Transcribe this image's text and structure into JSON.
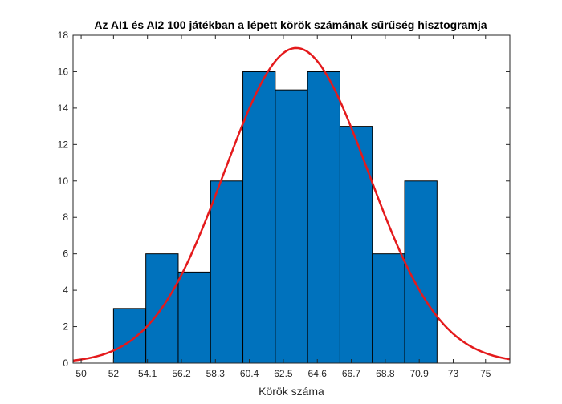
{
  "chart_data": {
    "type": "bar",
    "title": "Az AI1 és AI2 100 játékban a lépett körök számának sűrűség hisztogramja",
    "xlabel": "Körök száma",
    "ylabel": "",
    "xlim": [
      49.5,
      76.5
    ],
    "ylim": [
      0,
      18
    ],
    "yticks": [
      0,
      2,
      4,
      6,
      8,
      10,
      12,
      14,
      16,
      18
    ],
    "xticks": [
      {
        "value": 50,
        "label": "50"
      },
      {
        "value": 52,
        "label": "52"
      },
      {
        "value": 54.1,
        "label": "54.1"
      },
      {
        "value": 56.2,
        "label": "56.2"
      },
      {
        "value": 58.3,
        "label": "58.3"
      },
      {
        "value": 60.4,
        "label": "60.4"
      },
      {
        "value": 62.5,
        "label": "62.5"
      },
      {
        "value": 64.6,
        "label": "64.6"
      },
      {
        "value": 66.7,
        "label": "66.7"
      },
      {
        "value": 68.8,
        "label": "68.8"
      },
      {
        "value": 70.9,
        "label": "70.9"
      },
      {
        "value": 73,
        "label": "73"
      },
      {
        "value": 75,
        "label": "75"
      }
    ],
    "bins": [
      {
        "from": 52,
        "to": 54,
        "count": 3
      },
      {
        "from": 54,
        "to": 56,
        "count": 6
      },
      {
        "from": 56,
        "to": 58,
        "count": 5
      },
      {
        "from": 58,
        "to": 60,
        "count": 10
      },
      {
        "from": 60,
        "to": 62,
        "count": 16
      },
      {
        "from": 62,
        "to": 64,
        "count": 15
      },
      {
        "from": 64,
        "to": 66,
        "count": 16
      },
      {
        "from": 66,
        "to": 68,
        "count": 13
      },
      {
        "from": 68,
        "to": 70,
        "count": 6
      },
      {
        "from": 70,
        "to": 72,
        "count": 10
      }
    ],
    "fit_curve": {
      "type": "normal",
      "mean": 63.3,
      "std": 4.45,
      "peak": 17.3
    },
    "grid": false,
    "colors": {
      "bar_fill": "#0072BD",
      "bar_edge": "#000000",
      "curve": "#E41A1C",
      "axis": "#262626"
    }
  }
}
